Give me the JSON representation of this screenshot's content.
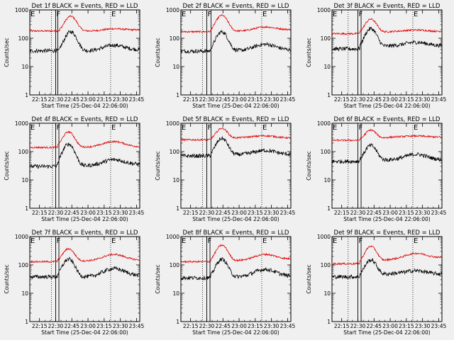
{
  "chart_data": {
    "type": "line",
    "layout": "3x3 grid",
    "yscale": "log",
    "ylim": [
      1,
      1000
    ],
    "yticks": [
      "1",
      "10",
      "100",
      "1000"
    ],
    "ylabel": "Counts/sec",
    "xlabel": "Start Time (25-Dec-04 22:06:00)",
    "xlim": [
      "22:06",
      "23:48"
    ],
    "xticks": [
      "22:15",
      "22:30",
      "22:45",
      "23:00",
      "23:15",
      "23:30",
      "23:45"
    ],
    "series_colors": {
      "events": "#000000",
      "lld": "#e00000"
    },
    "regions": [
      {
        "label": "E",
        "time": "22:06",
        "style": "dotted"
      },
      {
        "label": "F",
        "time": "22:30",
        "style": "solid"
      },
      {
        "label": "E",
        "time": "23:21",
        "style": "dotted"
      }
    ],
    "panels": [
      {
        "title": "Det 1f BLACK = Events, RED = LLD",
        "solid_lines": [
          "22:30",
          "22:32"
        ],
        "dotted_lines": [
          "22:26",
          "23:21"
        ],
        "peak_time": "22:44",
        "lld": {
          "pre": 180,
          "peak": 600,
          "mid": 180,
          "bump": 220,
          "end": 210
        },
        "events": {
          "pre": 36,
          "peak": 170,
          "mid": 36,
          "bump": 60,
          "end": 42
        }
      },
      {
        "title": "Det 2f BLACK = Events, RED = LLD",
        "solid_lines": [
          "22:30",
          "22:34"
        ],
        "dotted_lines": [
          "22:26",
          "23:21"
        ],
        "peak_time": "22:44",
        "lld": {
          "pre": 170,
          "peak": 650,
          "mid": 180,
          "bump": 260,
          "end": 220
        },
        "events": {
          "pre": 35,
          "peak": 170,
          "mid": 37,
          "bump": 65,
          "end": 40
        }
      },
      {
        "title": "Det 3f BLACK = Events, RED = LLD",
        "solid_lines": [
          "22:30",
          "22:33"
        ],
        "dotted_lines": [
          "22:21",
          "23:21"
        ],
        "peak_time": "22:42",
        "lld": {
          "pre": 145,
          "peak": 500,
          "mid": 175,
          "bump": 200,
          "end": 175
        },
        "events": {
          "pre": 42,
          "peak": 230,
          "mid": 55,
          "bump": 75,
          "end": 55
        }
      },
      {
        "title": "Det 4f BLACK = Events, RED = LLD",
        "solid_lines": [
          "22:30",
          "22:33"
        ],
        "dotted_lines": [
          "22:27",
          "23:21"
        ],
        "peak_time": "22:42",
        "lld": {
          "pre": 140,
          "peak": 500,
          "mid": 145,
          "bump": 240,
          "end": 150
        },
        "events": {
          "pre": 30,
          "peak": 185,
          "mid": 32,
          "bump": 55,
          "end": 38
        }
      },
      {
        "title": "Det 5f BLACK = Events, RED = LLD",
        "solid_lines": [
          "22:30",
          "22:34"
        ],
        "dotted_lines": [
          "22:26",
          "23:21"
        ],
        "peak_time": "22:44",
        "lld": {
          "pre": 260,
          "peak": 720,
          "mid": 320,
          "bump": 370,
          "end": 290
        },
        "events": {
          "pre": 70,
          "peak": 300,
          "mid": 80,
          "bump": 115,
          "end": 80
        }
      },
      {
        "title": "Det 6f BLACK = Events, RED = LLD",
        "solid_lines": [
          "22:30",
          "22:33"
        ],
        "dotted_lines": [
          "22:21",
          "23:21"
        ],
        "peak_time": "22:42",
        "lld": {
          "pre": 250,
          "peak": 650,
          "mid": 330,
          "bump": 360,
          "end": 320
        },
        "events": {
          "pre": 45,
          "peak": 170,
          "mid": 52,
          "bump": 85,
          "end": 52
        }
      },
      {
        "title": "Det 7f BLACK = Events, RED = LLD",
        "solid_lines": [
          "22:30",
          "22:33"
        ],
        "dotted_lines": [
          "22:26",
          "23:21"
        ],
        "peak_time": "22:42",
        "lld": {
          "pre": 130,
          "peak": 380,
          "mid": 140,
          "bump": 250,
          "end": 155
        },
        "events": {
          "pre": 38,
          "peak": 160,
          "mid": 38,
          "bump": 80,
          "end": 45
        }
      },
      {
        "title": "Det 8f BLACK = Events, RED = LLD",
        "solid_lines": [
          "22:30",
          "22:33"
        ],
        "dotted_lines": [
          "22:26",
          "23:21"
        ],
        "peak_time": "22:44",
        "lld": {
          "pre": 130,
          "peak": 510,
          "mid": 145,
          "bump": 250,
          "end": 175
        },
        "events": {
          "pre": 35,
          "peak": 160,
          "mid": 38,
          "bump": 75,
          "end": 42
        }
      },
      {
        "title": "Det 9f BLACK = Events, RED = LLD",
        "solid_lines": [
          "22:30",
          "22:33"
        ],
        "dotted_lines": [
          "22:21",
          "23:21"
        ],
        "peak_time": "22:42",
        "lld": {
          "pre": 110,
          "peak": 500,
          "mid": 160,
          "bump": 270,
          "end": 200
        },
        "events": {
          "pre": 38,
          "peak": 160,
          "mid": 50,
          "bump": 65,
          "end": 45
        }
      }
    ]
  }
}
